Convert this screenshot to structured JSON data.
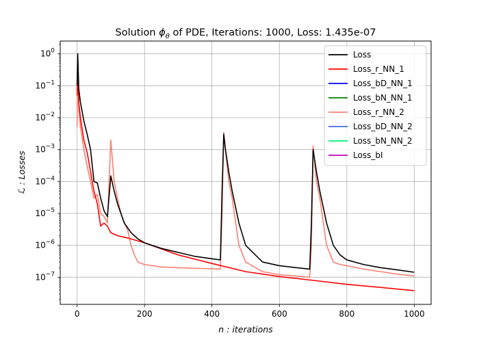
{
  "chart_data": {
    "type": "line",
    "title": "Solution ϕθ of PDE, Iterations: 1000, Loss: 1.435e-07",
    "title_parts": {
      "prefix": "Solution ",
      "phi": "ϕ",
      "theta": "θ",
      "suffix": " of PDE, Iterations: 1000, Loss: 1.435e-07"
    },
    "xlabel": "n : iterations",
    "ylabel": "ℒ : Losses",
    "xlim": [
      -50,
      1050
    ],
    "ylim_log10": [
      -7.85,
      0.4
    ],
    "y_scale": "log",
    "grid": true,
    "legend_position": "top-right",
    "x_ticks": [
      0,
      200,
      400,
      600,
      800,
      1000
    ],
    "x_tick_labels": [
      "0",
      "200",
      "400",
      "600",
      "800",
      "1000"
    ],
    "y_ticks_log10": [
      0,
      -1,
      -2,
      -3,
      -4,
      -5,
      -6,
      -7
    ],
    "y_tick_labels": [
      {
        "base": "10",
        "exp": "0"
      },
      {
        "base": "10",
        "exp": "−1"
      },
      {
        "base": "10",
        "exp": "−2"
      },
      {
        "base": "10",
        "exp": "−3"
      },
      {
        "base": "10",
        "exp": "−4"
      },
      {
        "base": "10",
        "exp": "−5"
      },
      {
        "base": "10",
        "exp": "−6"
      },
      {
        "base": "10",
        "exp": "−7"
      }
    ],
    "series": [
      {
        "name": "Loss",
        "color": "#000000",
        "x": [
          0,
          2,
          5,
          10,
          20,
          30,
          40,
          50,
          60,
          70,
          80,
          90,
          100,
          110,
          120,
          140,
          160,
          180,
          200,
          250,
          300,
          350,
          400,
          425,
          430,
          435,
          440,
          450,
          460,
          480,
          500,
          550,
          600,
          650,
          690,
          695,
          700,
          710,
          720,
          740,
          760,
          780,
          800,
          850,
          900,
          950,
          1000
        ],
        "y": [
          0.1,
          1.0,
          0.08,
          0.03,
          0.008,
          0.003,
          0.001,
          0.0001,
          9e-05,
          3e-05,
          1.2e-05,
          8e-06,
          0.00015,
          5e-05,
          2e-05,
          5e-06,
          2.5e-06,
          1.6e-06,
          1.2e-06,
          8e-07,
          6e-07,
          4.5e-07,
          3.8e-07,
          3.5e-07,
          5e-05,
          0.003,
          0.001,
          0.0002,
          5e-05,
          5e-06,
          1e-06,
          3e-07,
          2.3e-07,
          2e-07,
          1.8e-07,
          5e-06,
          0.001,
          0.0002,
          5e-05,
          5e-06,
          1e-06,
          5e-07,
          3.5e-07,
          2.5e-07,
          2e-07,
          1.7e-07,
          1.435e-07
        ]
      },
      {
        "name": "Loss_r_NN_1",
        "color": "#ff0000",
        "x": [
          0,
          2,
          5,
          10,
          20,
          30,
          40,
          50,
          60,
          70,
          80,
          90,
          100,
          120,
          150,
          200,
          300,
          400,
          500,
          600,
          700,
          800,
          900,
          1000
        ],
        "y": [
          0.05,
          0.5,
          0.03,
          0.01,
          0.002,
          0.0008,
          0.0002,
          5e-05,
          2e-05,
          4e-06,
          5e-06,
          4e-06,
          2.5e-06,
          2e-06,
          1.7e-06,
          1.2e-06,
          5e-07,
          2.7e-07,
          1.5e-07,
          1.05e-07,
          8e-08,
          6e-08,
          4.8e-08,
          3.8e-08
        ]
      },
      {
        "name": "Loss_bD_NN_1",
        "color": "#0000ff",
        "x": [],
        "y": []
      },
      {
        "name": "Loss_bN_NN_1",
        "color": "#008000",
        "x": [],
        "y": []
      },
      {
        "name": "Loss_r_NN_2",
        "color": "#fa8072",
        "x": [
          0,
          2,
          5,
          10,
          20,
          30,
          40,
          50,
          60,
          70,
          80,
          90,
          100,
          110,
          120,
          130,
          140,
          150,
          160,
          170,
          180,
          200,
          250,
          300,
          350,
          400,
          425,
          430,
          435,
          440,
          450,
          460,
          480,
          500,
          550,
          600,
          650,
          690,
          695,
          700,
          710,
          720,
          740,
          760,
          780,
          800,
          850,
          900,
          950,
          1000
        ],
        "y": [
          0.005,
          0.6,
          0.02,
          0.005,
          0.001,
          0.0003,
          0.0001,
          3e-05,
          4e-05,
          1e-05,
          8e-06,
          5e-06,
          0.002,
          0.0001,
          3e-05,
          1e-05,
          5e-06,
          3e-06,
          1e-06,
          5e-07,
          3e-07,
          2.5e-07,
          2.1e-07,
          2e-07,
          1.9e-07,
          1.85e-07,
          1.8e-07,
          1e-05,
          0.0035,
          0.001,
          0.0001,
          3e-05,
          1e-06,
          3e-07,
          1.5e-07,
          1.2e-07,
          1.1e-07,
          1e-07,
          1e-06,
          0.0013,
          0.0001,
          3e-05,
          1e-06,
          3e-07,
          2.5e-07,
          2.3e-07,
          1.8e-07,
          1.5e-07,
          1.25e-07,
          1.1e-07
        ]
      },
      {
        "name": "Loss_bD_NN_2",
        "color": "#4169e1",
        "x": [],
        "y": []
      },
      {
        "name": "Loss_bN_NN_2",
        "color": "#00ee76",
        "x": [],
        "y": []
      },
      {
        "name": "Loss_bI",
        "color": "#c000c0",
        "x": [],
        "y": []
      }
    ]
  }
}
